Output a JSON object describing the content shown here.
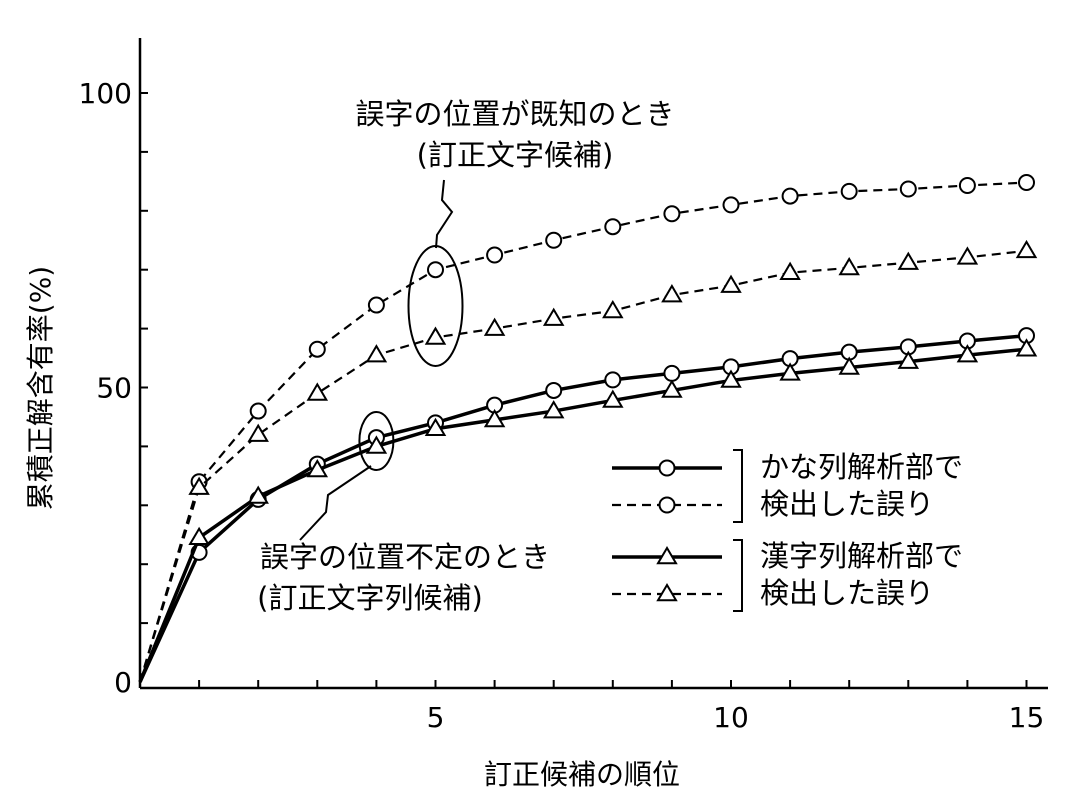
{
  "chart_data": {
    "type": "line",
    "title": "",
    "xlabel": "訂正候補の順位",
    "ylabel": "累積正解含有率(%)",
    "xlim": [
      0,
      15
    ],
    "ylim": [
      0,
      110
    ],
    "x_ticks": [
      5,
      10,
      15
    ],
    "y_ticks": [
      0,
      50,
      100
    ],
    "grid": false,
    "x": [
      0,
      1,
      2,
      3,
      4,
      5,
      6,
      7,
      8,
      9,
      10,
      11,
      12,
      13,
      14,
      15
    ],
    "series": [
      {
        "marker": "circle",
        "line": "solid",
        "values": [
          0,
          22,
          31,
          37,
          41.5,
          44,
          47,
          49.5,
          51.3,
          52.4,
          53.5,
          54.9,
          56,
          56.9,
          57.9,
          58.8
        ]
      },
      {
        "marker": "circle",
        "line": "dashed",
        "values": [
          0,
          34,
          46,
          56.5,
          64,
          70,
          72.5,
          75,
          77.3,
          79.5,
          81,
          82.5,
          83.3,
          83.7,
          84.3,
          84.8
        ]
      },
      {
        "marker": "triangle",
        "line": "solid",
        "values": [
          0,
          24.5,
          31.5,
          36,
          40,
          43,
          44.5,
          46,
          47.8,
          49.5,
          51.2,
          52.4,
          53.4,
          54.4,
          55.5,
          56.5
        ]
      },
      {
        "marker": "triangle",
        "line": "dashed",
        "values": [
          0,
          33,
          42,
          49,
          55.5,
          58.5,
          60,
          61.7,
          63,
          65.7,
          67.3,
          69.5,
          70.3,
          71.2,
          72.1,
          73.2
        ]
      }
    ],
    "legend": {
      "placement": "right",
      "groups": [
        {
          "lines": [
            "かな列解析部で",
            "検出した誤り"
          ],
          "marker": "circle"
        },
        {
          "lines": [
            "漢字列解析部で",
            "検出した誤り"
          ],
          "marker": "triangle"
        }
      ]
    },
    "annotations": [
      {
        "lines": [
          "誤字の位置が既知のとき",
          "(訂正文字候補)"
        ],
        "x": 5,
        "targets": "dashed"
      },
      {
        "lines": [
          "誤字の位置不定のとき",
          "(訂正文字列候補)"
        ],
        "x": 4,
        "targets": "solid"
      }
    ]
  }
}
